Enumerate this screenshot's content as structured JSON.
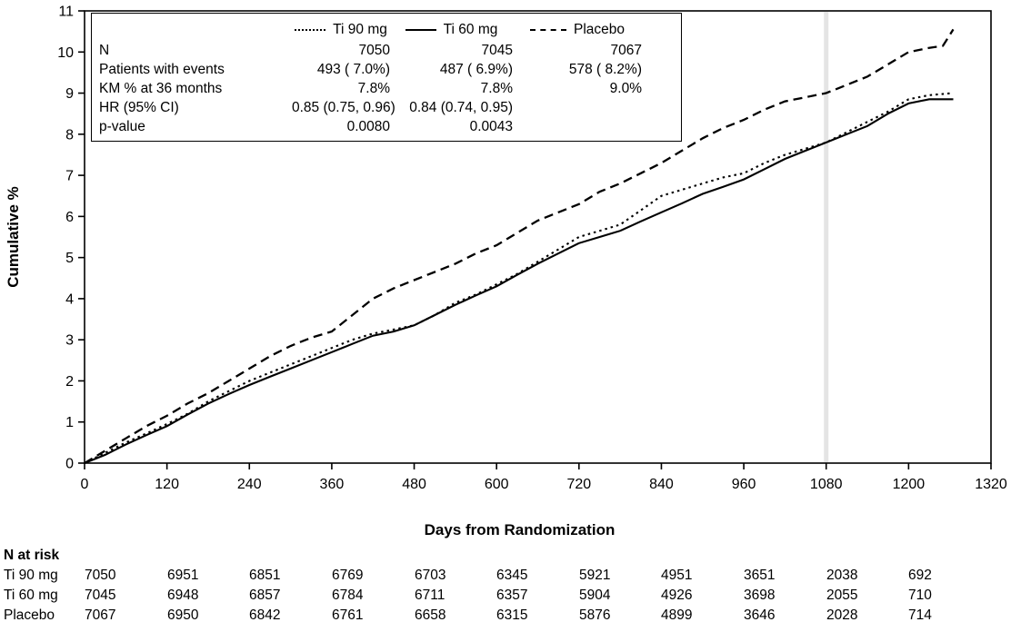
{
  "chart_data": {
    "type": "line",
    "title": "",
    "xlabel": "Days from Randomization",
    "ylabel": "Cumulative %",
    "xlim": [
      0,
      1320
    ],
    "ylim": [
      0,
      11
    ],
    "xticks": [
      0,
      120,
      240,
      360,
      480,
      600,
      720,
      840,
      960,
      1080,
      1200,
      1320
    ],
    "yticks": [
      0,
      1,
      2,
      3,
      4,
      5,
      6,
      7,
      8,
      9,
      10,
      11
    ],
    "grid": false,
    "reference_line_x": 1080,
    "reference_line_color": "#e4e4e4",
    "line_color": "#000000",
    "series": [
      {
        "name": "Ti 90 mg",
        "style": "dotted",
        "x": [
          0,
          30,
          60,
          90,
          120,
          150,
          180,
          210,
          240,
          270,
          300,
          330,
          360,
          390,
          420,
          450,
          480,
          510,
          540,
          570,
          600,
          630,
          660,
          690,
          720,
          750,
          780,
          810,
          840,
          870,
          900,
          930,
          960,
          990,
          1020,
          1050,
          1080,
          1110,
          1140,
          1170,
          1200,
          1230,
          1265
        ],
        "y": [
          0,
          0.25,
          0.5,
          0.72,
          0.95,
          1.2,
          1.5,
          1.75,
          2.0,
          2.2,
          2.4,
          2.6,
          2.8,
          3.0,
          3.15,
          3.25,
          3.35,
          3.6,
          3.9,
          4.1,
          4.35,
          4.6,
          4.9,
          5.2,
          5.5,
          5.65,
          5.8,
          6.15,
          6.5,
          6.65,
          6.8,
          6.95,
          7.05,
          7.3,
          7.5,
          7.65,
          7.8,
          8.05,
          8.3,
          8.55,
          8.85,
          8.95,
          9.0
        ]
      },
      {
        "name": "Ti 60 mg",
        "style": "solid",
        "x": [
          0,
          30,
          60,
          90,
          120,
          150,
          180,
          210,
          240,
          270,
          300,
          330,
          360,
          390,
          420,
          450,
          480,
          510,
          540,
          570,
          600,
          630,
          660,
          690,
          720,
          750,
          780,
          810,
          840,
          870,
          900,
          930,
          960,
          990,
          1020,
          1050,
          1080,
          1110,
          1140,
          1170,
          1200,
          1230,
          1265
        ],
        "y": [
          0,
          0.2,
          0.45,
          0.68,
          0.9,
          1.18,
          1.45,
          1.68,
          1.9,
          2.1,
          2.3,
          2.5,
          2.7,
          2.9,
          3.1,
          3.2,
          3.35,
          3.6,
          3.85,
          4.08,
          4.3,
          4.58,
          4.85,
          5.1,
          5.35,
          5.5,
          5.65,
          5.88,
          6.1,
          6.32,
          6.55,
          6.72,
          6.9,
          7.15,
          7.4,
          7.6,
          7.8,
          8.0,
          8.2,
          8.5,
          8.75,
          8.85,
          8.85
        ]
      },
      {
        "name": "Placebo",
        "style": "dashed",
        "x": [
          0,
          30,
          60,
          90,
          120,
          150,
          180,
          210,
          240,
          270,
          300,
          330,
          360,
          390,
          420,
          450,
          480,
          510,
          540,
          570,
          600,
          630,
          660,
          690,
          720,
          750,
          780,
          810,
          840,
          870,
          900,
          930,
          960,
          990,
          1020,
          1050,
          1080,
          1110,
          1140,
          1170,
          1200,
          1230,
          1250,
          1265
        ],
        "y": [
          0,
          0.3,
          0.6,
          0.9,
          1.15,
          1.45,
          1.7,
          2.0,
          2.3,
          2.6,
          2.85,
          3.05,
          3.2,
          3.6,
          4.0,
          4.25,
          4.45,
          4.65,
          4.85,
          5.1,
          5.3,
          5.6,
          5.9,
          6.1,
          6.3,
          6.6,
          6.8,
          7.05,
          7.3,
          7.6,
          7.9,
          8.15,
          8.35,
          8.6,
          8.8,
          8.9,
          9.0,
          9.2,
          9.4,
          9.7,
          10.0,
          10.1,
          10.15,
          10.55
        ]
      }
    ],
    "legend_table": {
      "rows": [
        {
          "label": "N",
          "values": [
            "7050",
            "7045",
            "7067"
          ]
        },
        {
          "label": "Patients with events",
          "values": [
            "493 ( 7.0%)",
            "487 ( 6.9%)",
            "578 ( 8.2%)"
          ]
        },
        {
          "label": "KM % at 36 months",
          "values": [
            "7.8%",
            "7.8%",
            "9.0%"
          ]
        },
        {
          "label": "HR (95% CI)",
          "values": [
            "0.85 (0.75, 0.96)",
            "0.84 (0.74, 0.95)",
            ""
          ]
        },
        {
          "label": "p-value",
          "values": [
            "0.0080",
            "0.0043",
            ""
          ]
        }
      ]
    },
    "risk_table": {
      "title": "N at risk",
      "x": [
        0,
        120,
        240,
        360,
        480,
        600,
        720,
        840,
        960,
        1080,
        1200
      ],
      "rows": [
        {
          "name": "Ti 90 mg",
          "values": [
            7050,
            6951,
            6851,
            6769,
            6703,
            6345,
            5921,
            4951,
            3651,
            2038,
            692
          ]
        },
        {
          "name": "Ti 60 mg",
          "values": [
            7045,
            6948,
            6857,
            6784,
            6711,
            6357,
            5904,
            4926,
            3698,
            2055,
            710
          ]
        },
        {
          "name": "Placebo",
          "values": [
            7067,
            6950,
            6842,
            6761,
            6658,
            6315,
            5876,
            4899,
            3646,
            2028,
            714
          ]
        }
      ]
    }
  }
}
